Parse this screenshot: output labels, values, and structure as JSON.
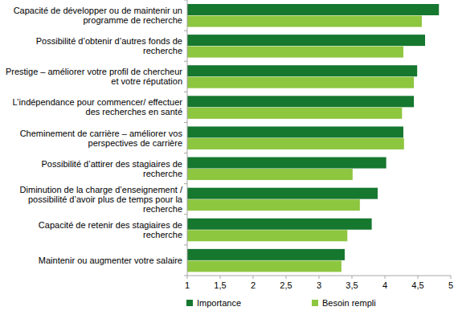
{
  "chart_data": {
    "type": "bar",
    "orientation": "horizontal",
    "categories": [
      "Capacité de développer ou de maintenir un programme de recherche",
      "Possibilité d’obtenir d’autres fonds de recherche",
      "Prestige – améliorer votre profil de chercheur et votre réputation",
      "L’indépendance pour commencer/ effectuer des recherches en santé",
      "Cheminement de carrière – améliorer vos perspectives de carrière",
      "Possibilité d’attirer des stagiaires de recherche",
      "Diminution de la charge d’enseignement / possibilité d’avoir plus de temps pour la recherche",
      "Capacité de retenir des stagiaires de recherche",
      "Maintenir ou augmenter votre salaire"
    ],
    "series": [
      {
        "name": "Importance",
        "color": "#16772f",
        "values": [
          4.82,
          4.61,
          4.49,
          4.44,
          4.28,
          4.02,
          3.89,
          3.8,
          3.39
        ]
      },
      {
        "name": "Besoin rempli",
        "color": "#8dc63f",
        "values": [
          4.56,
          4.28,
          4.44,
          4.26,
          4.29,
          3.51,
          3.62,
          3.43,
          3.34
        ]
      }
    ],
    "xlim": [
      1,
      5
    ],
    "xticks": [
      1,
      {
        "value": 1.5,
        "label": "1,5"
      },
      2,
      {
        "value": 2.5,
        "label": "2,5"
      },
      3,
      {
        "value": 3.5,
        "label": "3,5"
      },
      4,
      {
        "value": 4.5,
        "label": "4,5"
      },
      5
    ],
    "grid": false,
    "legend": "bottom"
  }
}
